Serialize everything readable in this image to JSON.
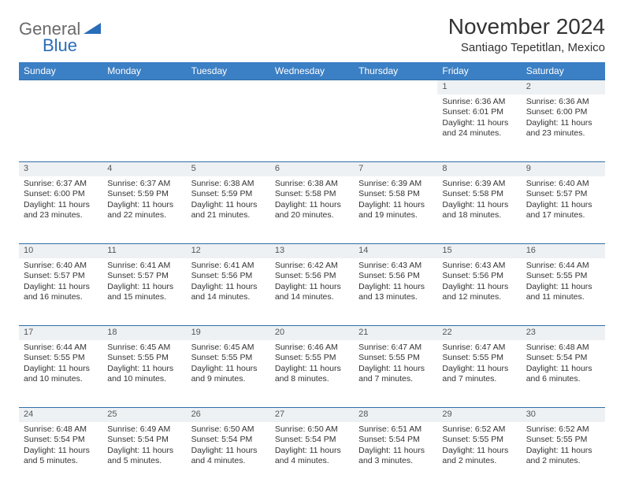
{
  "logo": {
    "general": "General",
    "blue": "Blue"
  },
  "title": "November 2024",
  "location": "Santiago Tepetitlan, Mexico",
  "colors": {
    "header_bg": "#3b7fc4",
    "header_text": "#ffffff",
    "row_border": "#2f6fa8",
    "daynum_bg": "#eef1f4",
    "logo_gray": "#6a6a6a",
    "logo_blue": "#2a6db8"
  },
  "dow": [
    "Sunday",
    "Monday",
    "Tuesday",
    "Wednesday",
    "Thursday",
    "Friday",
    "Saturday"
  ],
  "weeks": [
    [
      null,
      null,
      null,
      null,
      null,
      {
        "n": "1",
        "sunrise": "6:36 AM",
        "sunset": "6:01 PM",
        "daylight": "11 hours and 24 minutes."
      },
      {
        "n": "2",
        "sunrise": "6:36 AM",
        "sunset": "6:00 PM",
        "daylight": "11 hours and 23 minutes."
      }
    ],
    [
      {
        "n": "3",
        "sunrise": "6:37 AM",
        "sunset": "6:00 PM",
        "daylight": "11 hours and 23 minutes."
      },
      {
        "n": "4",
        "sunrise": "6:37 AM",
        "sunset": "5:59 PM",
        "daylight": "11 hours and 22 minutes."
      },
      {
        "n": "5",
        "sunrise": "6:38 AM",
        "sunset": "5:59 PM",
        "daylight": "11 hours and 21 minutes."
      },
      {
        "n": "6",
        "sunrise": "6:38 AM",
        "sunset": "5:58 PM",
        "daylight": "11 hours and 20 minutes."
      },
      {
        "n": "7",
        "sunrise": "6:39 AM",
        "sunset": "5:58 PM",
        "daylight": "11 hours and 19 minutes."
      },
      {
        "n": "8",
        "sunrise": "6:39 AM",
        "sunset": "5:58 PM",
        "daylight": "11 hours and 18 minutes."
      },
      {
        "n": "9",
        "sunrise": "6:40 AM",
        "sunset": "5:57 PM",
        "daylight": "11 hours and 17 minutes."
      }
    ],
    [
      {
        "n": "10",
        "sunrise": "6:40 AM",
        "sunset": "5:57 PM",
        "daylight": "11 hours and 16 minutes."
      },
      {
        "n": "11",
        "sunrise": "6:41 AM",
        "sunset": "5:57 PM",
        "daylight": "11 hours and 15 minutes."
      },
      {
        "n": "12",
        "sunrise": "6:41 AM",
        "sunset": "5:56 PM",
        "daylight": "11 hours and 14 minutes."
      },
      {
        "n": "13",
        "sunrise": "6:42 AM",
        "sunset": "5:56 PM",
        "daylight": "11 hours and 14 minutes."
      },
      {
        "n": "14",
        "sunrise": "6:43 AM",
        "sunset": "5:56 PM",
        "daylight": "11 hours and 13 minutes."
      },
      {
        "n": "15",
        "sunrise": "6:43 AM",
        "sunset": "5:56 PM",
        "daylight": "11 hours and 12 minutes."
      },
      {
        "n": "16",
        "sunrise": "6:44 AM",
        "sunset": "5:55 PM",
        "daylight": "11 hours and 11 minutes."
      }
    ],
    [
      {
        "n": "17",
        "sunrise": "6:44 AM",
        "sunset": "5:55 PM",
        "daylight": "11 hours and 10 minutes."
      },
      {
        "n": "18",
        "sunrise": "6:45 AM",
        "sunset": "5:55 PM",
        "daylight": "11 hours and 10 minutes."
      },
      {
        "n": "19",
        "sunrise": "6:45 AM",
        "sunset": "5:55 PM",
        "daylight": "11 hours and 9 minutes."
      },
      {
        "n": "20",
        "sunrise": "6:46 AM",
        "sunset": "5:55 PM",
        "daylight": "11 hours and 8 minutes."
      },
      {
        "n": "21",
        "sunrise": "6:47 AM",
        "sunset": "5:55 PM",
        "daylight": "11 hours and 7 minutes."
      },
      {
        "n": "22",
        "sunrise": "6:47 AM",
        "sunset": "5:55 PM",
        "daylight": "11 hours and 7 minutes."
      },
      {
        "n": "23",
        "sunrise": "6:48 AM",
        "sunset": "5:54 PM",
        "daylight": "11 hours and 6 minutes."
      }
    ],
    [
      {
        "n": "24",
        "sunrise": "6:48 AM",
        "sunset": "5:54 PM",
        "daylight": "11 hours and 5 minutes."
      },
      {
        "n": "25",
        "sunrise": "6:49 AM",
        "sunset": "5:54 PM",
        "daylight": "11 hours and 5 minutes."
      },
      {
        "n": "26",
        "sunrise": "6:50 AM",
        "sunset": "5:54 PM",
        "daylight": "11 hours and 4 minutes."
      },
      {
        "n": "27",
        "sunrise": "6:50 AM",
        "sunset": "5:54 PM",
        "daylight": "11 hours and 4 minutes."
      },
      {
        "n": "28",
        "sunrise": "6:51 AM",
        "sunset": "5:54 PM",
        "daylight": "11 hours and 3 minutes."
      },
      {
        "n": "29",
        "sunrise": "6:52 AM",
        "sunset": "5:55 PM",
        "daylight": "11 hours and 2 minutes."
      },
      {
        "n": "30",
        "sunrise": "6:52 AM",
        "sunset": "5:55 PM",
        "daylight": "11 hours and 2 minutes."
      }
    ]
  ],
  "labels": {
    "sunrise": "Sunrise: ",
    "sunset": "Sunset: ",
    "daylight": "Daylight: "
  }
}
